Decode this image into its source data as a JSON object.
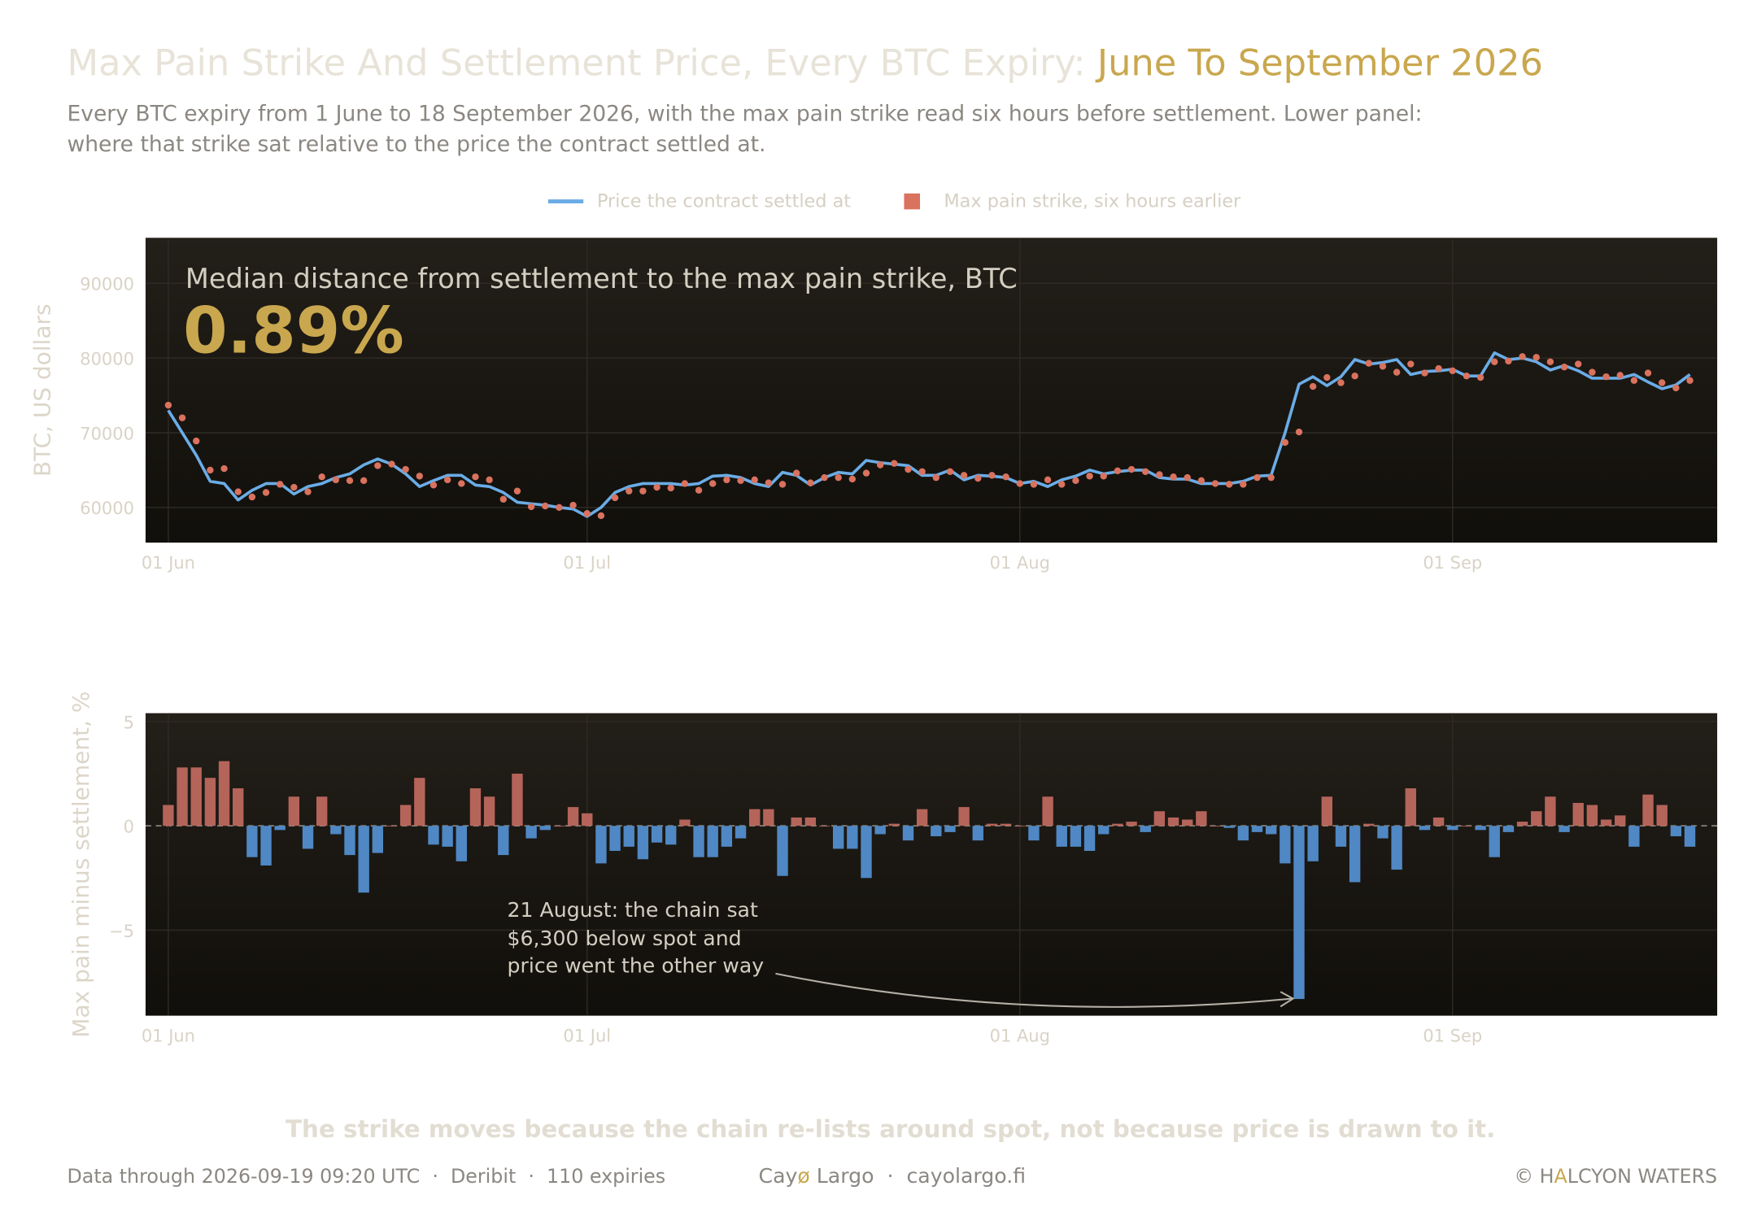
{
  "header": {
    "title": "Max Pain Strike And Settlement Price, Every BTC Expiry: ",
    "title_highlight": "June To September 2026",
    "subtitle": [
      "Every BTC expiry from 1 June to 18 September 2026, with the max pain strike read six hours before settlement. Lower panel:",
      "where that strike sat relative to the price the contract settled at."
    ]
  },
  "chart_data": [
    {
      "type": "line",
      "y_label": "BTC, US dollars",
      "callout_label": "Median distance from settlement to the max pain strike, BTC",
      "callout_value": "0.89%",
      "categories": [
        "01 Jun",
        "02 Jun",
        "03 Jun",
        "04 Jun",
        "05 Jun",
        "06 Jun",
        "07 Jun",
        "08 Jun",
        "09 Jun",
        "10 Jun",
        "11 Jun",
        "12 Jun",
        "13 Jun",
        "14 Jun",
        "15 Jun",
        "16 Jun",
        "17 Jun",
        "18 Jun",
        "19 Jun",
        "20 Jun",
        "21 Jun",
        "22 Jun",
        "23 Jun",
        "24 Jun",
        "25 Jun",
        "26 Jun",
        "27 Jun",
        "28 Jun",
        "29 Jun",
        "30 Jun",
        "01 Jul",
        "02 Jul",
        "03 Jul",
        "04 Jul",
        "05 Jul",
        "06 Jul",
        "07 Jul",
        "08 Jul",
        "09 Jul",
        "10 Jul",
        "11 Jul",
        "12 Jul",
        "13 Jul",
        "14 Jul",
        "15 Jul",
        "16 Jul",
        "17 Jul",
        "18 Jul",
        "19 Jul",
        "20 Jul",
        "21 Jul",
        "22 Jul",
        "23 Jul",
        "24 Jul",
        "25 Jul",
        "26 Jul",
        "27 Jul",
        "28 Jul",
        "29 Jul",
        "30 Jul",
        "31 Jul",
        "01 Aug",
        "02 Aug",
        "03 Aug",
        "04 Aug",
        "05 Aug",
        "06 Aug",
        "07 Aug",
        "08 Aug",
        "09 Aug",
        "10 Aug",
        "11 Aug",
        "12 Aug",
        "13 Aug",
        "14 Aug",
        "15 Aug",
        "16 Aug",
        "17 Aug",
        "18 Aug",
        "19 Aug",
        "20 Aug",
        "21 Aug",
        "22 Aug",
        "23 Aug",
        "24 Aug",
        "25 Aug",
        "26 Aug",
        "27 Aug",
        "28 Aug",
        "29 Aug",
        "30 Aug",
        "31 Aug",
        "01 Sep",
        "02 Sep",
        "03 Sep",
        "04 Sep",
        "05 Sep",
        "06 Sep",
        "07 Sep",
        "08 Sep",
        "09 Sep",
        "10 Sep",
        "11 Sep",
        "12 Sep",
        "13 Sep",
        "14 Sep",
        "15 Sep",
        "16 Sep",
        "17 Sep",
        "18 Sep"
      ],
      "series": [
        {
          "name": "Price the contract settled at",
          "style": "line",
          "color": "#6aace6",
          "values": [
            73000,
            70000,
            67000,
            63500,
            63200,
            61000,
            62300,
            63200,
            63200,
            61800,
            62800,
            63200,
            64000,
            64500,
            65700,
            66500,
            65800,
            64500,
            62800,
            63600,
            64300,
            64300,
            63000,
            62800,
            62000,
            60700,
            60500,
            60300,
            60000,
            59800,
            58800,
            60000,
            62000,
            62800,
            63200,
            63200,
            63200,
            63000,
            63200,
            64200,
            64300,
            64000,
            63200,
            62800,
            64700,
            64300,
            63000,
            64000,
            64700,
            64500,
            66300,
            66000,
            65800,
            65600,
            64300,
            64300,
            65000,
            63700,
            64300,
            64200,
            64000,
            63200,
            63500,
            62800,
            63700,
            64200,
            65000,
            64500,
            64800,
            65000,
            65000,
            64000,
            63800,
            63800,
            63200,
            63200,
            63200,
            63500,
            64200,
            64300,
            70000,
            76500,
            77500,
            76300,
            77500,
            79800,
            79200,
            79400,
            79800,
            77800,
            78200,
            78300,
            78500,
            77600,
            77600,
            80700,
            79800,
            80000,
            79500,
            78400,
            79000,
            78300,
            77300,
            77300,
            77300,
            77800,
            76800,
            75900,
            76400,
            77800
          ]
        },
        {
          "name": "Max pain strike, six hours earlier",
          "style": "dots",
          "color": "#d9725e",
          "values": [
            73700,
            72000,
            68900,
            65000,
            65200,
            62100,
            61400,
            62000,
            63100,
            62700,
            62100,
            64100,
            63700,
            63600,
            63600,
            65600,
            65800,
            65100,
            64200,
            63000,
            63700,
            63200,
            64100,
            63700,
            61100,
            62200,
            60100,
            60200,
            60000,
            60300,
            59200,
            58900,
            61300,
            62200,
            62200,
            62700,
            62600,
            63200,
            62300,
            63200,
            63700,
            63600,
            63700,
            63300,
            63100,
            64600,
            63300,
            64000,
            64000,
            63800,
            64600,
            65700,
            65900,
            65100,
            64800,
            64000,
            64800,
            64300,
            63900,
            64300,
            64100,
            63200,
            63100,
            63700,
            63100,
            63600,
            64200,
            64200,
            64900,
            65100,
            64800,
            64400,
            64100,
            64000,
            63600,
            63200,
            63100,
            63100,
            64000,
            64000,
            68700,
            70100,
            76200,
            77400,
            76700,
            77600,
            79300,
            78900,
            78100,
            79200,
            78000,
            78600,
            78300,
            77600,
            77400,
            79500,
            79600,
            80200,
            80100,
            79500,
            78800,
            79200,
            78100,
            77500,
            77700,
            77000,
            78000,
            76700,
            76000,
            77000
          ]
        }
      ],
      "ylim": [
        55300,
        96100
      ],
      "yticks": [
        60000,
        70000,
        80000,
        90000
      ],
      "xticks": [
        "01 Jun",
        "01 Jul",
        "01 Aug",
        "01 Sep"
      ],
      "grid": true
    },
    {
      "type": "bar",
      "y_label": "Max pain minus settlement, %",
      "annotation": [
        "21 August: the chain sat",
        "$6,300 below spot and",
        "price went the other way"
      ],
      "categories": [
        "01 Jun",
        "02 Jun",
        "03 Jun",
        "04 Jun",
        "05 Jun",
        "06 Jun",
        "07 Jun",
        "08 Jun",
        "09 Jun",
        "10 Jun",
        "11 Jun",
        "12 Jun",
        "13 Jun",
        "14 Jun",
        "15 Jun",
        "16 Jun",
        "17 Jun",
        "18 Jun",
        "19 Jun",
        "20 Jun",
        "21 Jun",
        "22 Jun",
        "23 Jun",
        "24 Jun",
        "25 Jun",
        "26 Jun",
        "27 Jun",
        "28 Jun",
        "29 Jun",
        "30 Jun",
        "01 Jul",
        "02 Jul",
        "03 Jul",
        "04 Jul",
        "05 Jul",
        "06 Jul",
        "07 Jul",
        "08 Jul",
        "09 Jul",
        "10 Jul",
        "11 Jul",
        "12 Jul",
        "13 Jul",
        "14 Jul",
        "15 Jul",
        "16 Jul",
        "17 Jul",
        "18 Jul",
        "19 Jul",
        "20 Jul",
        "21 Jul",
        "22 Jul",
        "23 Jul",
        "24 Jul",
        "25 Jul",
        "26 Jul",
        "27 Jul",
        "28 Jul",
        "29 Jul",
        "30 Jul",
        "31 Jul",
        "01 Aug",
        "02 Aug",
        "03 Aug",
        "04 Aug",
        "05 Aug",
        "06 Aug",
        "07 Aug",
        "08 Aug",
        "09 Aug",
        "10 Aug",
        "11 Aug",
        "12 Aug",
        "13 Aug",
        "14 Aug",
        "15 Aug",
        "16 Aug",
        "17 Aug",
        "18 Aug",
        "19 Aug",
        "20 Aug",
        "21 Aug",
        "22 Aug",
        "23 Aug",
        "24 Aug",
        "25 Aug",
        "26 Aug",
        "27 Aug",
        "28 Aug",
        "29 Aug",
        "30 Aug",
        "31 Aug",
        "01 Sep",
        "02 Sep",
        "03 Sep",
        "04 Sep",
        "05 Sep",
        "06 Sep",
        "07 Sep",
        "08 Sep",
        "09 Sep",
        "10 Sep",
        "11 Sep",
        "12 Sep",
        "13 Sep",
        "14 Sep",
        "15 Sep",
        "16 Sep",
        "17 Sep",
        "18 Sep"
      ],
      "values": [
        1.0,
        2.8,
        2.8,
        2.3,
        3.1,
        1.8,
        -1.5,
        -1.9,
        -0.2,
        1.4,
        -1.1,
        1.4,
        -0.4,
        -1.4,
        -3.2,
        -1.3,
        0,
        1.0,
        2.3,
        -0.9,
        -1.0,
        -1.7,
        1.8,
        1.4,
        -1.4,
        2.5,
        -0.6,
        -0.2,
        0,
        0.9,
        0.6,
        -1.8,
        -1.2,
        -1.0,
        -1.6,
        -0.8,
        -0.9,
        0.3,
        -1.5,
        -1.5,
        -1.0,
        -0.6,
        0.8,
        0.8,
        -2.4,
        0.4,
        0.4,
        0,
        -1.1,
        -1.1,
        -2.5,
        -0.4,
        0.1,
        -0.7,
        0.8,
        -0.5,
        -0.3,
        0.9,
        -0.7,
        0.1,
        0.1,
        0,
        -0.7,
        1.4,
        -1.0,
        -1.0,
        -1.2,
        -0.4,
        0.1,
        0.2,
        -0.3,
        0.7,
        0.4,
        0.3,
        0.7,
        0,
        -0.1,
        -0.7,
        -0.3,
        -0.4,
        -1.8,
        -8.3,
        -1.7,
        1.4,
        -1.0,
        -2.7,
        0.1,
        -0.6,
        -2.1,
        1.8,
        -0.2,
        0.4,
        -0.2,
        0,
        -0.2,
        -1.5,
        -0.3,
        0.2,
        0.7,
        1.4,
        -0.3,
        1.1,
        1.0,
        0.3,
        0.5,
        -1.0,
        1.5,
        1.0,
        -0.5,
        -1.0
      ],
      "positive_color": "#b5645a",
      "negative_color": "#4f88c4",
      "ylim": [
        -9.1,
        5.4
      ],
      "yticks": [
        {
          "value": -5,
          "label": "−5"
        },
        0,
        5
      ],
      "xticks": [
        "01 Jun",
        "01 Jul",
        "01 Aug",
        "01 Sep"
      ],
      "grid": true
    }
  ],
  "caption": "The strike moves because the chain re-lists around spot, not because price is drawn to it.",
  "footer": {
    "source": "Data through 2026-09-19 09:20 UTC  ·  Deribit  ·  110 expiries",
    "brand_a": "Cay",
    "brand_mark": "ø",
    "brand_b": " Largo  ·  cayolargo.fi",
    "copyright": "© H",
    "copyright_mark": "A",
    "copyright_b": "LCYON WATERS"
  }
}
